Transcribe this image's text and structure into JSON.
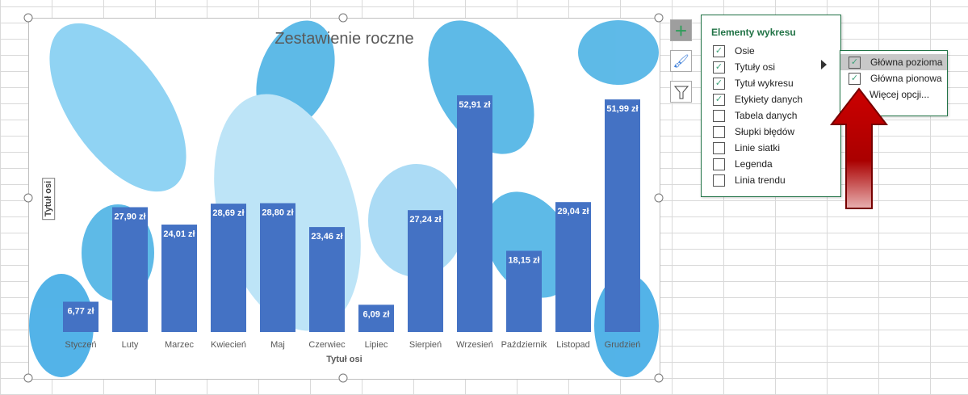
{
  "chart_data": {
    "type": "bar",
    "title": "Zestawienie roczne",
    "xlabel": "Tytuł osi",
    "ylabel": "Tytuł osi",
    "categories": [
      "Styczeń",
      "Luty",
      "Marzec",
      "Kwiecień",
      "Maj",
      "Czerwiec",
      "Lipiec",
      "Sierpień",
      "Wrzesień",
      "Październik",
      "Listopad",
      "Grudzień"
    ],
    "values": [
      6.77,
      27.9,
      24.01,
      28.69,
      28.8,
      23.46,
      6.09,
      27.24,
      52.91,
      18.15,
      29.04,
      51.99
    ],
    "labels": [
      "6,77 zł",
      "27,90 zł",
      "24,01 zł",
      "28,69 zł",
      "28,80 zł",
      "23,46 zł",
      "6,09 zł",
      "27,24 zł",
      "52,91 zł",
      "18,15 zł",
      "29,04 zł",
      "51,99 zł"
    ],
    "bar_color": "#4472c4",
    "grid": false,
    "legend": "none"
  },
  "panel": {
    "title": "Elementy wykresu",
    "items": [
      {
        "label": "Osie",
        "checked": true
      },
      {
        "label": "Tytuły osi",
        "checked": true
      },
      {
        "label": "Tytuł wykresu",
        "checked": true
      },
      {
        "label": "Etykiety danych",
        "checked": true
      },
      {
        "label": "Tabela danych",
        "checked": false
      },
      {
        "label": "Słupki błędów",
        "checked": false
      },
      {
        "label": "Linie siatki",
        "checked": false
      },
      {
        "label": "Legenda",
        "checked": false
      },
      {
        "label": "Linia trendu",
        "checked": false
      }
    ]
  },
  "submenu": {
    "items": [
      {
        "label": "Główna pozioma",
        "checked": true
      },
      {
        "label": "Główna pionowa",
        "checked": true
      }
    ],
    "more": "Więcej opcji..."
  },
  "buttons": [
    "chart-elements-icon",
    "chart-styles-icon",
    "chart-filters-icon"
  ],
  "accent": "#217346"
}
